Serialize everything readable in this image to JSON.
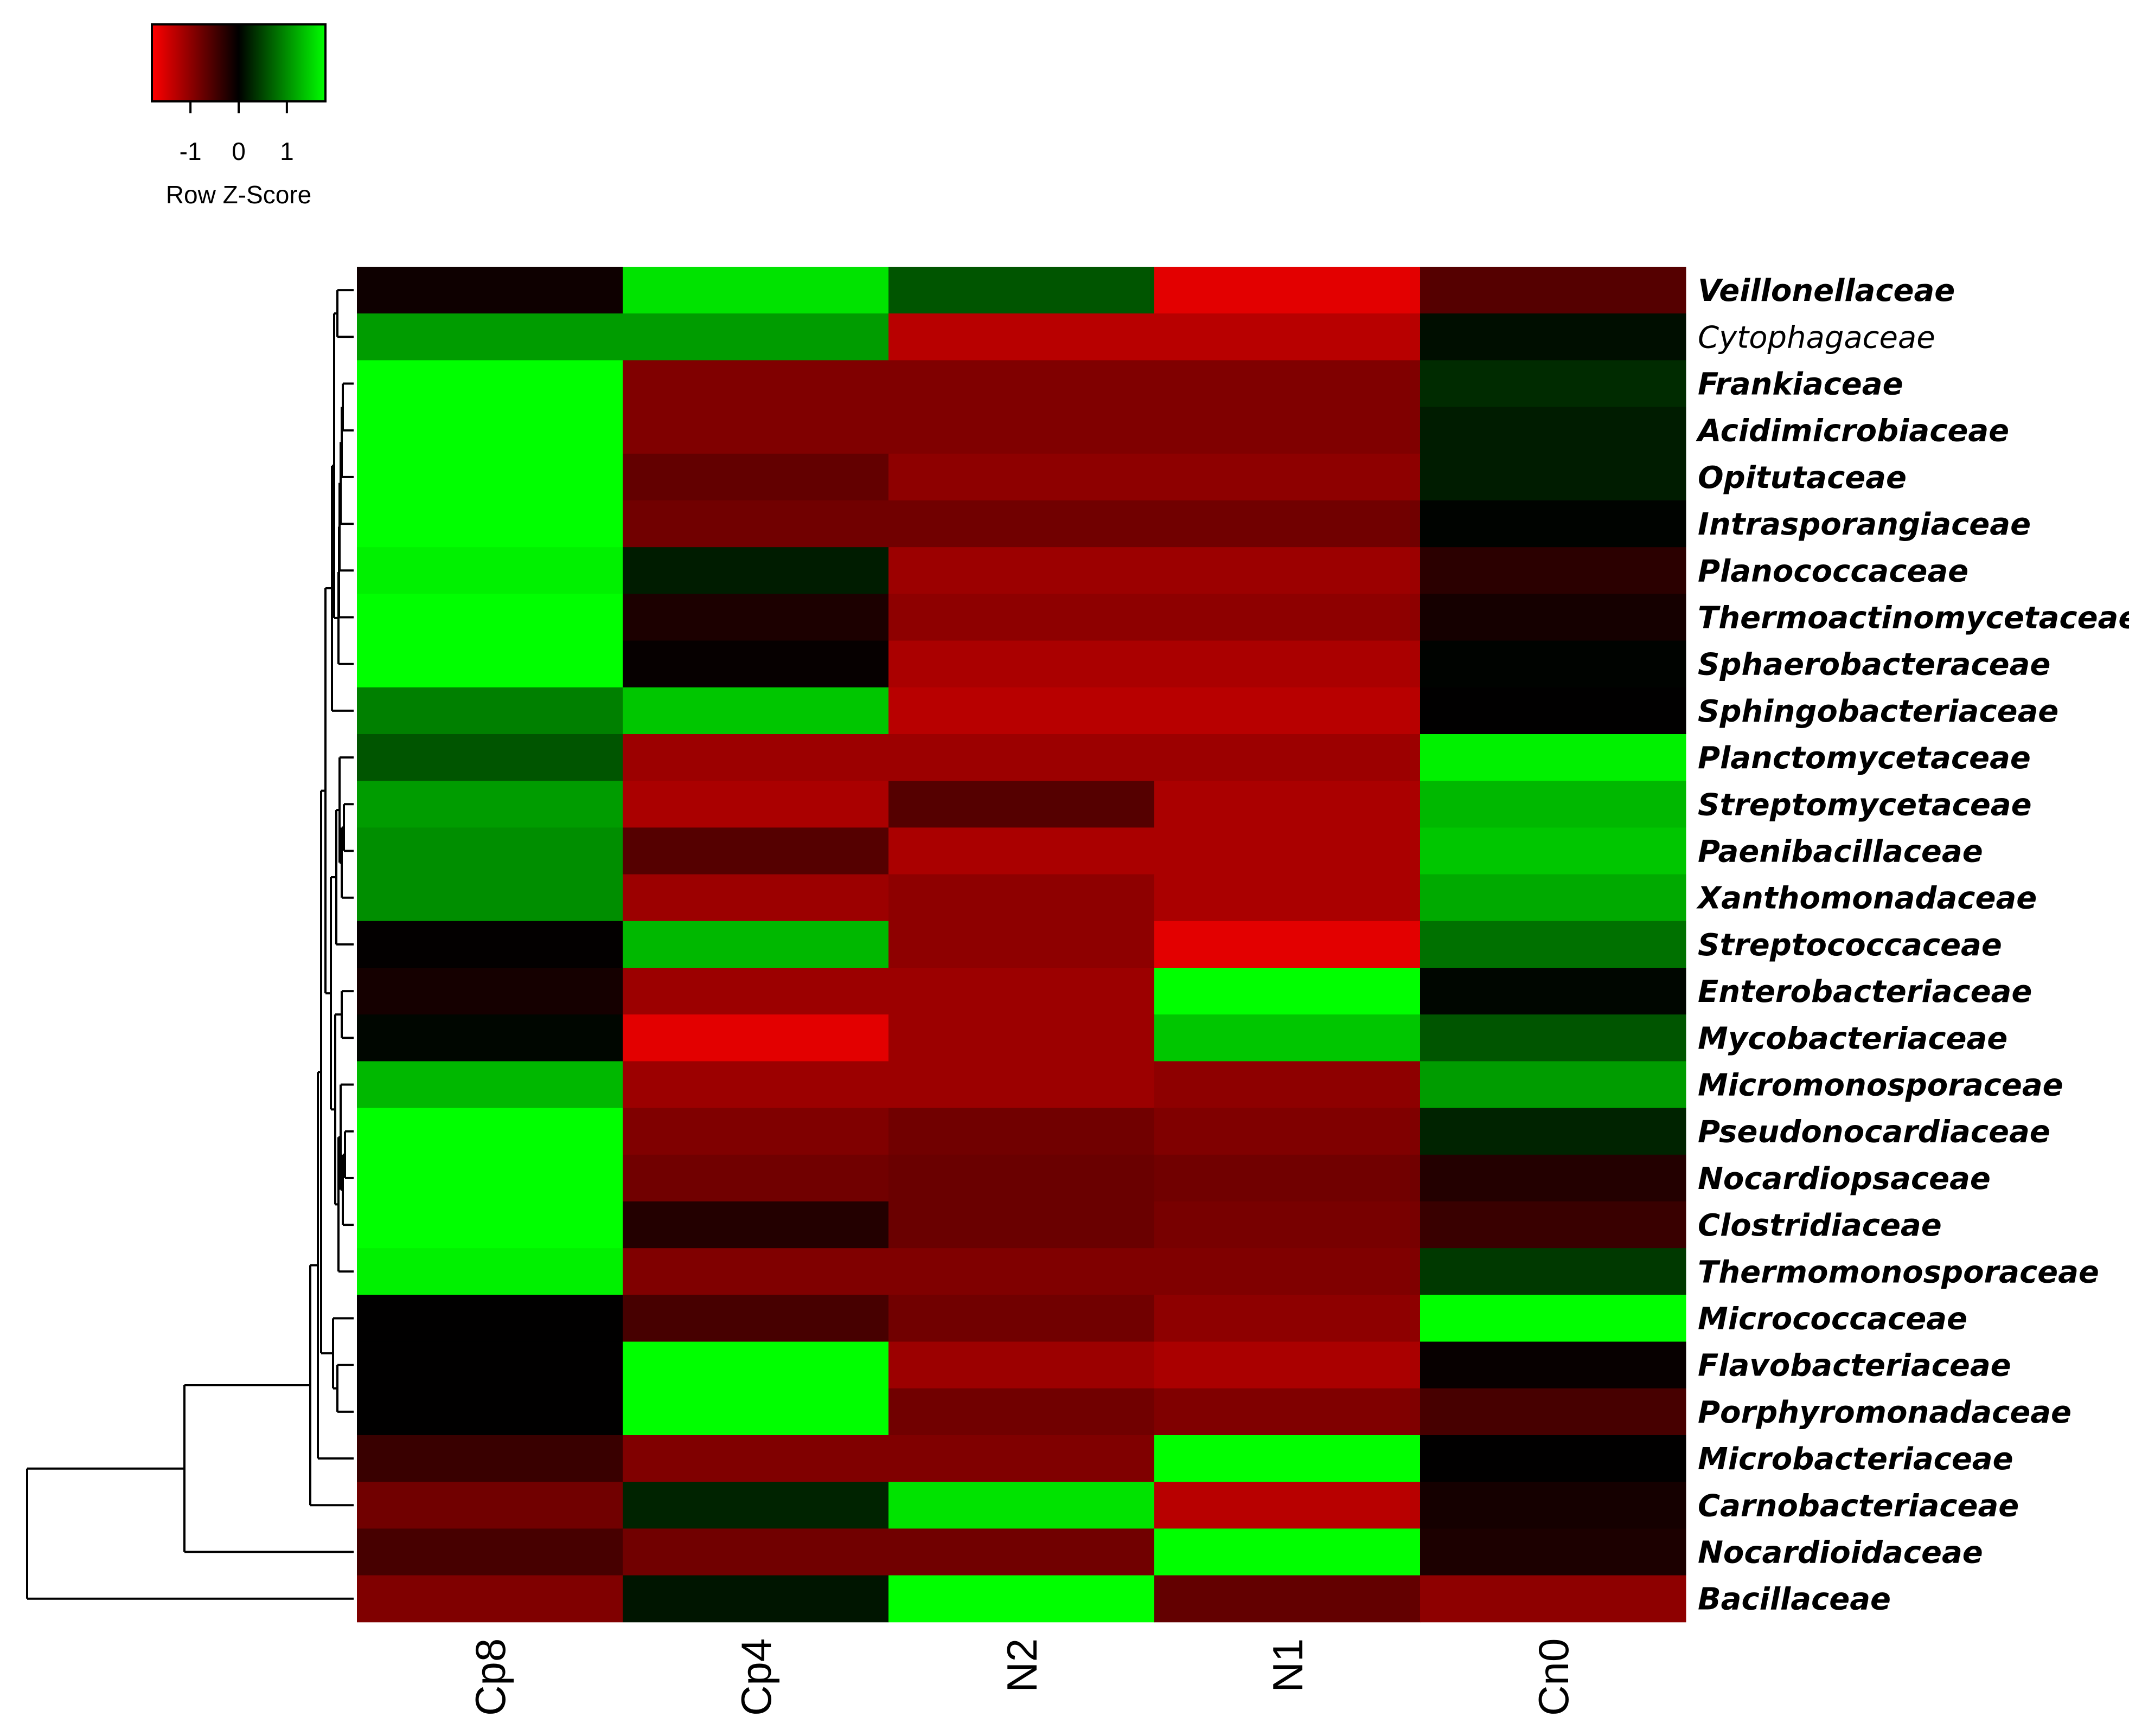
{
  "chart_data": {
    "type": "heatmap",
    "columns": [
      "Cp8",
      "Cp4",
      "N2",
      "N1",
      "Cn0"
    ],
    "rows": [
      "Veillonellaceae",
      "Cytophagaceae",
      "Frankiaceae",
      "Acidimicrobiaceae",
      "Opitutaceae",
      "Intrasporangiaceae",
      "Planococcaceae",
      "Thermoactinomycetaceae",
      "Sphaerobacteraceae",
      "Sphingobacteriaceae",
      "Planctomycetaceae",
      "Streptomycetaceae",
      "Paenibacillaceae",
      "Xanthomonadaceae",
      "Streptococcaceae",
      "Enterobacteriaceae",
      "Mycobacteriaceae",
      "Micromonosporaceae",
      "Pseudonocardiaceae",
      "Nocardiopsaceae",
      "Clostridiaceae",
      "Thermomonosporaceae",
      "Micrococcaceae",
      "Flavobacteriaceae",
      "Porphyromonadaceae",
      "Microbacteriaceae",
      "Carnobacteriaceae",
      "Nocardioidaceae",
      "Bacillaceae"
    ],
    "plain_rows": [
      "Cytophagaceae"
    ],
    "values": [
      [
        -0.1,
        1.6,
        0.6,
        -1.6,
        -0.6
      ],
      [
        1.1,
        1.1,
        -1.3,
        -1.3,
        0.1
      ],
      [
        1.8,
        -0.9,
        -0.9,
        -0.9,
        0.3
      ],
      [
        1.8,
        -0.9,
        -0.9,
        -0.9,
        0.2
      ],
      [
        1.8,
        -0.7,
        -1.0,
        -1.0,
        0.2
      ],
      [
        1.8,
        -0.8,
        -0.8,
        -0.8,
        0.02
      ],
      [
        1.7,
        0.2,
        -1.1,
        -1.1,
        -0.3
      ],
      [
        1.9,
        -0.2,
        -1.0,
        -1.0,
        -0.15
      ],
      [
        1.8,
        -0.04,
        -1.2,
        -1.2,
        0.02
      ],
      [
        0.9,
        1.4,
        -1.3,
        -1.3,
        -0.01
      ],
      [
        0.6,
        -1.1,
        -1.1,
        -1.1,
        1.7
      ],
      [
        1.1,
        -1.2,
        -0.6,
        -1.2,
        1.3
      ],
      [
        1.0,
        -0.6,
        -1.2,
        -1.2,
        1.4
      ],
      [
        1.0,
        -1.1,
        -1.0,
        -1.2,
        1.2
      ],
      [
        -0.02,
        1.3,
        -1.0,
        -1.6,
        0.8
      ],
      [
        -0.15,
        -1.1,
        -1.1,
        1.8,
        0.04
      ],
      [
        0.04,
        -1.6,
        -1.1,
        1.4,
        0.6
      ],
      [
        1.3,
        -1.1,
        -1.1,
        -1.0,
        1.1
      ],
      [
        1.8,
        -0.9,
        -0.8,
        -0.9,
        0.25
      ],
      [
        1.9,
        -0.8,
        -0.75,
        -0.8,
        -0.25
      ],
      [
        1.9,
        -0.25,
        -0.75,
        -0.85,
        -0.4
      ],
      [
        1.7,
        -0.9,
        -0.9,
        -0.9,
        0.4
      ],
      [
        -0.01,
        -0.5,
        -0.8,
        -1.0,
        1.9
      ],
      [
        -0.01,
        1.9,
        -1.1,
        -1.2,
        -0.05
      ],
      [
        -0.01,
        1.9,
        -0.8,
        -0.9,
        -0.5
      ],
      [
        -0.4,
        -0.9,
        -0.9,
        1.8,
        -0.01
      ],
      [
        -0.8,
        0.25,
        1.6,
        -1.3,
        -0.15
      ],
      [
        -0.5,
        -0.8,
        -0.8,
        1.8,
        -0.2
      ],
      [
        -0.9,
        0.15,
        1.8,
        -0.7,
        -1.0
      ]
    ],
    "color_scale": {
      "low": "#ff0000",
      "mid": "#000000",
      "high": "#00ff00",
      "range": [
        -1.8,
        1.8
      ]
    },
    "legend": {
      "title": "Row Z-Score",
      "ticks": [
        -1,
        0,
        1
      ],
      "placement": "top-left"
    },
    "row_dendrogram": true,
    "title": "",
    "xlabel": "",
    "ylabel": ""
  },
  "legend_ticks_text": [
    "-1",
    "0",
    "1"
  ],
  "legend_title": "Row Z-Score"
}
